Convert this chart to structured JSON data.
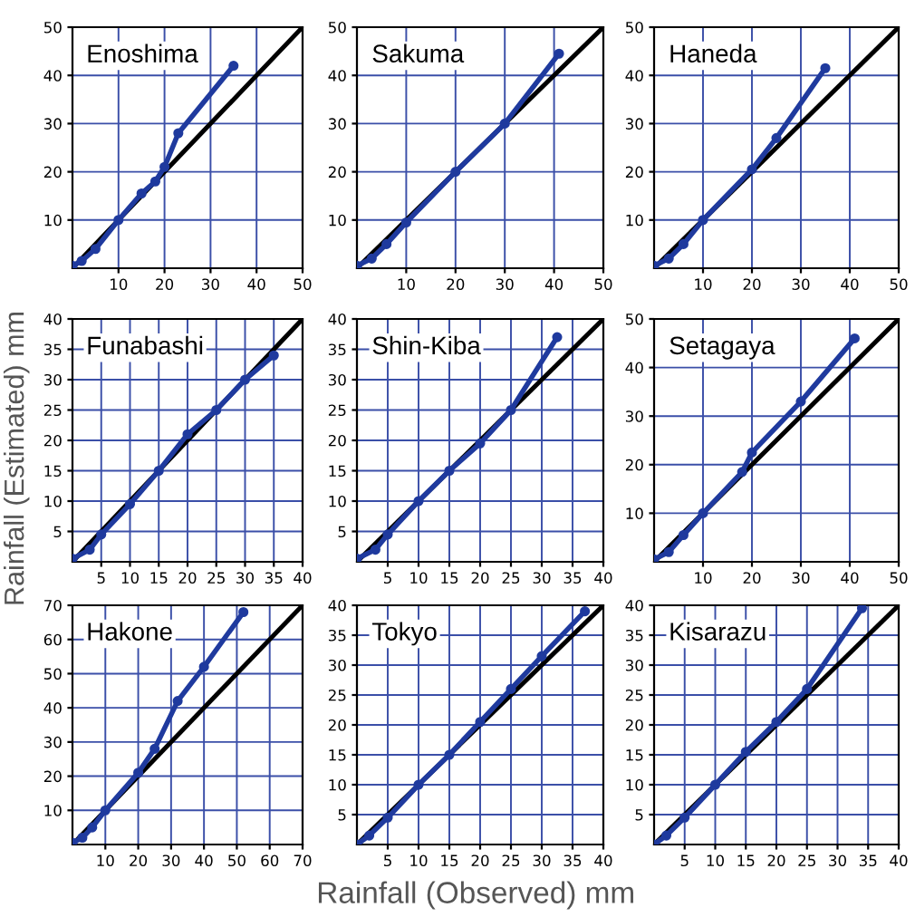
{
  "chart_data": [
    {
      "type": "line",
      "title": "Enoshima",
      "xlim": [
        0,
        50
      ],
      "ylim": [
        0,
        50
      ],
      "xticks": [
        10,
        20,
        30,
        40,
        50
      ],
      "yticks": [
        10,
        20,
        30,
        40,
        50
      ],
      "grid": true,
      "series": [
        {
          "color": "#1f3a9e",
          "marker": "circle",
          "x": [
            0,
            2,
            5,
            10,
            15,
            18,
            20,
            23,
            35
          ],
          "values": [
            0.5,
            1.5,
            4,
            10,
            15.5,
            18,
            21,
            28,
            42
          ]
        },
        {
          "color": "#000000",
          "marker": "none",
          "x": [
            0,
            50
          ],
          "values": [
            0,
            50
          ]
        }
      ]
    },
    {
      "type": "line",
      "title": "Sakuma",
      "xlim": [
        0,
        50
      ],
      "ylim": [
        0,
        50
      ],
      "xticks": [
        10,
        20,
        30,
        40,
        50
      ],
      "yticks": [
        10,
        20,
        30,
        40,
        50
      ],
      "grid": true,
      "series": [
        {
          "color": "#1f3a9e",
          "marker": "circle",
          "x": [
            0,
            3,
            6,
            10,
            20,
            30,
            41
          ],
          "values": [
            0.5,
            2,
            5,
            9.5,
            20,
            30,
            44.5
          ]
        },
        {
          "color": "#000000",
          "marker": "none",
          "x": [
            0,
            50
          ],
          "values": [
            0,
            50
          ]
        }
      ]
    },
    {
      "type": "line",
      "title": "Haneda",
      "xlim": [
        0,
        50
      ],
      "ylim": [
        0,
        50
      ],
      "xticks": [
        10,
        20,
        30,
        40,
        50
      ],
      "yticks": [
        10,
        20,
        30,
        40,
        50
      ],
      "grid": true,
      "series": [
        {
          "color": "#1f3a9e",
          "marker": "circle",
          "x": [
            0,
            3,
            6,
            10,
            20,
            25,
            35
          ],
          "values": [
            0.5,
            2,
            5,
            10,
            20.5,
            27,
            41.5
          ]
        },
        {
          "color": "#000000",
          "marker": "none",
          "x": [
            0,
            50
          ],
          "values": [
            0,
            50
          ]
        }
      ]
    },
    {
      "type": "line",
      "title": "Funabashi",
      "ylabel": "Rainfall (Estimated) mm",
      "xlim": [
        0,
        40
      ],
      "ylim": [
        0,
        40
      ],
      "xticks": [
        5,
        10,
        15,
        20,
        25,
        30,
        35,
        40
      ],
      "yticks": [
        5,
        10,
        15,
        20,
        25,
        30,
        35,
        40
      ],
      "grid": true,
      "series": [
        {
          "color": "#1f3a9e",
          "marker": "circle",
          "x": [
            0,
            3,
            5,
            10,
            15,
            20,
            25,
            30,
            35
          ],
          "values": [
            0.5,
            2,
            4.5,
            9.5,
            15,
            21,
            25,
            30,
            34
          ]
        },
        {
          "color": "#000000",
          "marker": "none",
          "x": [
            0,
            40
          ],
          "values": [
            0,
            40
          ]
        }
      ]
    },
    {
      "type": "line",
      "title": "Shin-Kiba",
      "xlim": [
        0,
        40
      ],
      "ylim": [
        0,
        40
      ],
      "xticks": [
        5,
        10,
        15,
        20,
        25,
        30,
        35,
        40
      ],
      "yticks": [
        5,
        10,
        15,
        20,
        25,
        30,
        35,
        40
      ],
      "grid": true,
      "series": [
        {
          "color": "#1f3a9e",
          "marker": "circle",
          "x": [
            0,
            3,
            5,
            10,
            15,
            20,
            25,
            32.5
          ],
          "values": [
            0.5,
            2,
            4.5,
            10,
            15,
            19.5,
            25,
            37
          ]
        },
        {
          "color": "#000000",
          "marker": "none",
          "x": [
            0,
            40
          ],
          "values": [
            0,
            40
          ]
        }
      ]
    },
    {
      "type": "line",
      "title": "Setagaya",
      "xlim": [
        0,
        50
      ],
      "ylim": [
        0,
        50
      ],
      "xticks": [
        10,
        20,
        30,
        40,
        50
      ],
      "yticks": [
        10,
        20,
        30,
        40,
        50
      ],
      "grid": true,
      "series": [
        {
          "color": "#1f3a9e",
          "marker": "circle",
          "x": [
            0,
            3,
            6,
            10,
            18,
            20,
            30,
            41
          ],
          "values": [
            0.5,
            2,
            5.5,
            10,
            18.5,
            22.5,
            33,
            46
          ]
        },
        {
          "color": "#000000",
          "marker": "none",
          "x": [
            0,
            50
          ],
          "values": [
            0,
            50
          ]
        }
      ]
    },
    {
      "type": "line",
      "title": "Hakone",
      "xlim": [
        0,
        70
      ],
      "ylim": [
        0,
        70
      ],
      "xticks": [
        10,
        20,
        30,
        40,
        50,
        60,
        70
      ],
      "yticks": [
        10,
        20,
        30,
        40,
        50,
        60,
        70
      ],
      "grid": true,
      "series": [
        {
          "color": "#1f3a9e",
          "marker": "circle",
          "x": [
            0,
            3,
            6,
            10,
            20,
            25,
            32,
            40,
            52
          ],
          "values": [
            0.5,
            2,
            5,
            10,
            21,
            28,
            42,
            52,
            68
          ]
        },
        {
          "color": "#000000",
          "marker": "none",
          "x": [
            0,
            70
          ],
          "values": [
            0,
            70
          ]
        }
      ]
    },
    {
      "type": "line",
      "title": "Tokyo",
      "xlabel": "Rainfall (Observed) mm",
      "xlim": [
        0,
        40
      ],
      "ylim": [
        0,
        40
      ],
      "xticks": [
        5,
        10,
        15,
        20,
        25,
        30,
        35,
        40
      ],
      "yticks": [
        5,
        10,
        15,
        20,
        25,
        30,
        35,
        40
      ],
      "grid": true,
      "series": [
        {
          "color": "#1f3a9e",
          "marker": "circle",
          "x": [
            0,
            2,
            5,
            10,
            15,
            20,
            25,
            30,
            37
          ],
          "values": [
            0,
            1.5,
            4.5,
            10,
            15,
            20.5,
            26,
            31.5,
            39
          ]
        },
        {
          "color": "#000000",
          "marker": "none",
          "x": [
            0,
            40
          ],
          "values": [
            0,
            40
          ]
        }
      ]
    },
    {
      "type": "line",
      "title": "Kisarazu",
      "xlim": [
        0,
        40
      ],
      "ylim": [
        0,
        40
      ],
      "xticks": [
        5,
        10,
        15,
        20,
        25,
        30,
        35,
        40
      ],
      "yticks": [
        5,
        10,
        15,
        20,
        25,
        30,
        35,
        40
      ],
      "grid": true,
      "series": [
        {
          "color": "#1f3a9e",
          "marker": "circle",
          "x": [
            0,
            2,
            5,
            10,
            15,
            20,
            25,
            34
          ],
          "values": [
            0,
            1.5,
            4.5,
            10,
            15.5,
            20.5,
            26,
            39.5
          ]
        },
        {
          "color": "#000000",
          "marker": "none",
          "x": [
            0,
            40
          ],
          "values": [
            0,
            40
          ]
        }
      ]
    }
  ]
}
